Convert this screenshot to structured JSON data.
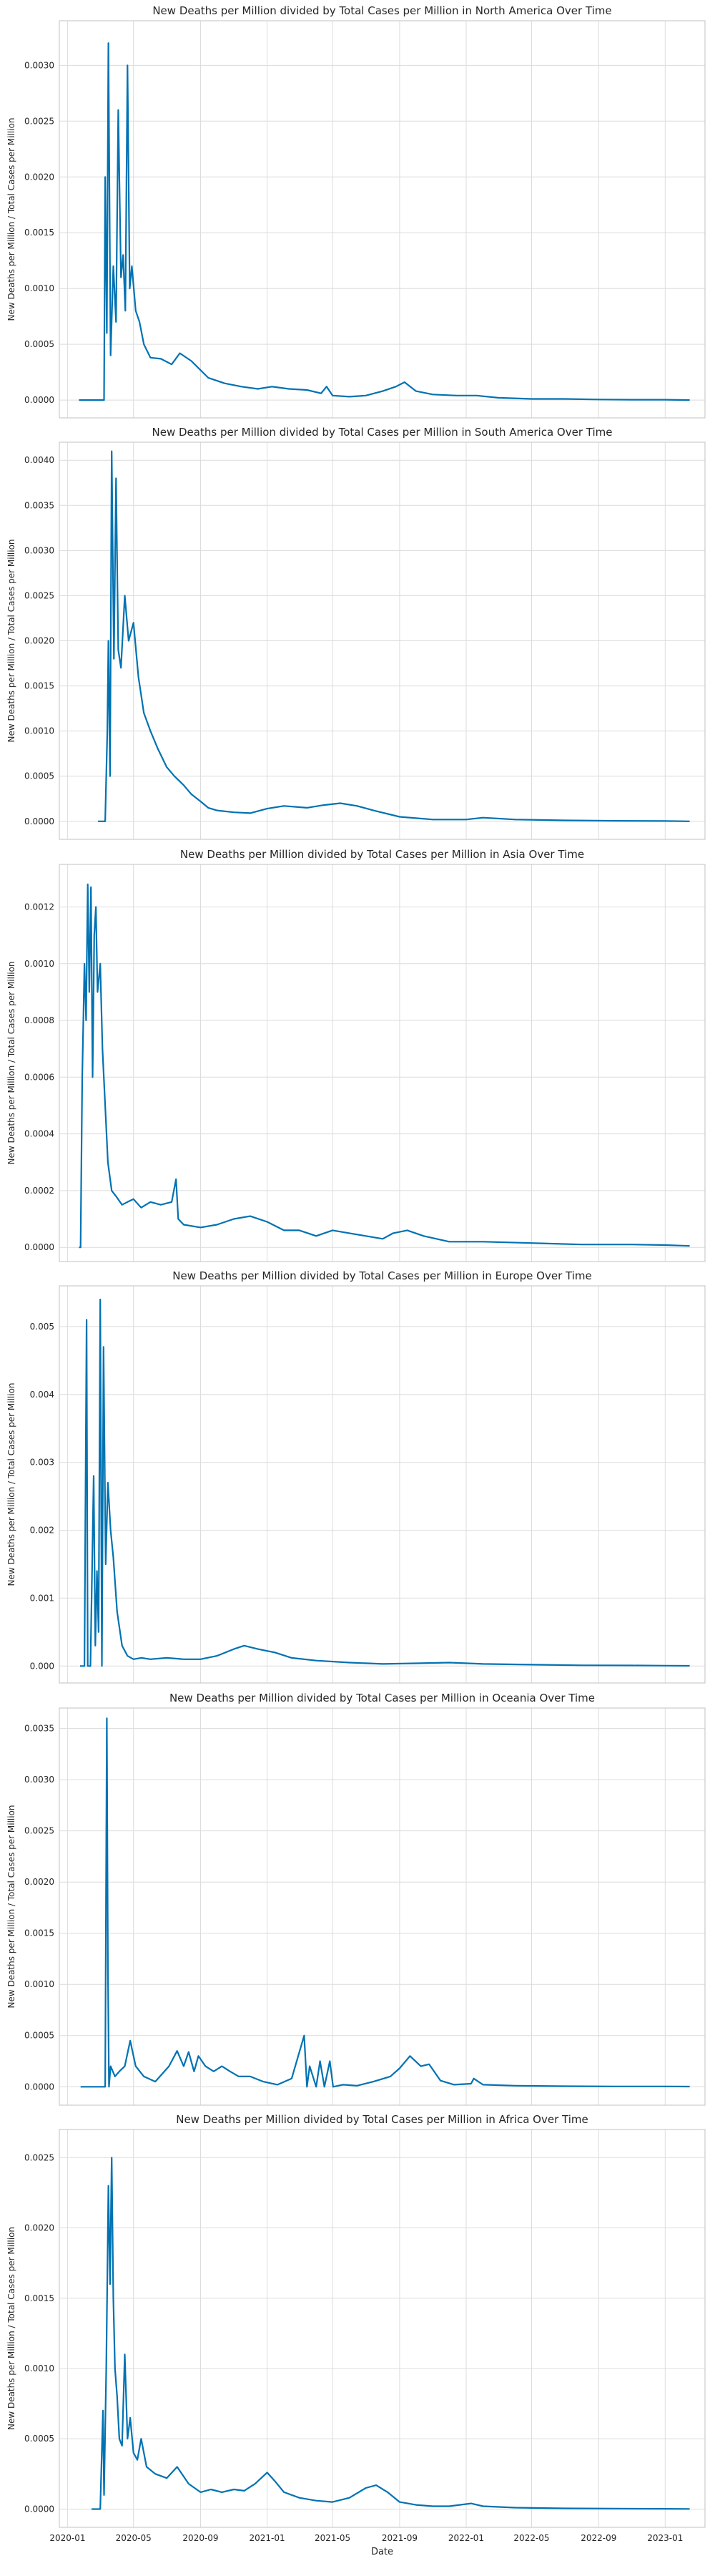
{
  "figure": {
    "shared_xlabel": "Date"
  },
  "chart_data": [
    {
      "type": "line",
      "title": "New Deaths per Million divided by Total Cases per Million in North America Over Time",
      "ylabel": "New Deaths per Million / Total Cases per Million",
      "xlabel": "",
      "ylim": [
        -0.00016,
        0.0034
      ],
      "yticks": [
        0,
        0.0005,
        0.001,
        0.0015,
        0.002,
        0.0025,
        0.003
      ],
      "ytick_labels": [
        "0.0000",
        "0.0005",
        "0.0010",
        "0.0015",
        "0.0020",
        "0.0025",
        "0.0030"
      ],
      "xlim": [
        "2019-12-17",
        "2023-03-15"
      ],
      "xticks": [
        "2020-01-01",
        "2020-05-01",
        "2020-09-01",
        "2021-01-01",
        "2021-05-01",
        "2021-09-01",
        "2022-01-01",
        "2022-05-01",
        "2022-09-01",
        "2023-01-01"
      ],
      "xtick_labels": [],
      "grid": true,
      "color": "#0072b2",
      "series": [
        {
          "x": [
            "2020-01-22",
            "2020-03-01",
            "2020-03-08",
            "2020-03-10",
            "2020-03-13",
            "2020-03-16",
            "2020-03-20",
            "2020-03-25",
            "2020-03-30",
            "2020-04-03",
            "2020-04-08",
            "2020-04-12",
            "2020-04-16",
            "2020-04-20",
            "2020-04-24",
            "2020-04-28",
            "2020-05-05",
            "2020-05-12",
            "2020-05-20",
            "2020-06-01",
            "2020-06-20",
            "2020-07-10",
            "2020-07-25",
            "2020-08-15",
            "2020-09-15",
            "2020-10-15",
            "2020-11-15",
            "2020-12-15",
            "2021-01-10",
            "2021-02-10",
            "2021-03-15",
            "2021-04-10",
            "2021-04-20",
            "2021-05-01",
            "2021-06-01",
            "2021-07-01",
            "2021-08-01",
            "2021-08-25",
            "2021-09-10",
            "2021-10-01",
            "2021-11-01",
            "2021-12-15",
            "2022-01-20",
            "2022-03-01",
            "2022-05-01",
            "2022-07-01",
            "2022-09-01",
            "2022-11-01",
            "2023-01-01",
            "2023-02-15"
          ],
          "y": [
            0.0,
            0.0,
            0.0,
            0.002,
            0.0006,
            0.0032,
            0.0004,
            0.0012,
            0.0007,
            0.0026,
            0.0011,
            0.0013,
            0.0008,
            0.003,
            0.001,
            0.0012,
            0.0008,
            0.0007,
            0.0005,
            0.00038,
            0.00037,
            0.00032,
            0.00042,
            0.00035,
            0.0002,
            0.00015,
            0.00012,
            0.0001,
            0.00012,
            0.0001,
            9e-05,
            6e-05,
            0.00012,
            4e-05,
            3e-05,
            4e-05,
            8e-05,
            0.00012,
            0.00016,
            8e-05,
            5e-05,
            4e-05,
            4e-05,
            2e-05,
            1e-05,
            1e-05,
            5e-06,
            3e-06,
            3e-06,
            0.0
          ]
        }
      ]
    },
    {
      "type": "line",
      "title": "New Deaths per Million divided by Total Cases per Million in South America Over Time",
      "ylabel": "New Deaths per Million / Total Cases per Million",
      "xlabel": "",
      "ylim": [
        -0.0002,
        0.0042
      ],
      "yticks": [
        0,
        0.0005,
        0.001,
        0.0015,
        0.002,
        0.0025,
        0.003,
        0.0035,
        0.004
      ],
      "ytick_labels": [
        "0.0000",
        "0.0005",
        "0.0010",
        "0.0015",
        "0.0020",
        "0.0025",
        "0.0030",
        "0.0035",
        "0.0040"
      ],
      "xlim": [
        "2019-12-17",
        "2023-03-15"
      ],
      "xticks": [
        "2020-01-01",
        "2020-05-01",
        "2020-09-01",
        "2021-01-01",
        "2021-05-01",
        "2021-09-01",
        "2022-01-01",
        "2022-05-01",
        "2022-09-01",
        "2023-01-01"
      ],
      "xtick_labels": [],
      "grid": true,
      "color": "#0072b2",
      "series": [
        {
          "x": [
            "2020-02-26",
            "2020-03-10",
            "2020-03-14",
            "2020-03-16",
            "2020-03-19",
            "2020-03-22",
            "2020-03-26",
            "2020-03-30",
            "2020-04-03",
            "2020-04-08",
            "2020-04-15",
            "2020-04-22",
            "2020-05-01",
            "2020-05-10",
            "2020-05-20",
            "2020-06-01",
            "2020-06-15",
            "2020-07-01",
            "2020-07-15",
            "2020-08-01",
            "2020-08-15",
            "2020-09-01",
            "2020-09-15",
            "2020-10-01",
            "2020-11-01",
            "2020-12-01",
            "2021-01-01",
            "2021-02-01",
            "2021-03-15",
            "2021-04-15",
            "2021-05-15",
            "2021-06-15",
            "2021-07-15",
            "2021-09-01",
            "2021-11-01",
            "2022-01-01",
            "2022-02-01",
            "2022-04-01",
            "2022-07-01",
            "2022-10-01",
            "2023-01-01",
            "2023-02-15"
          ],
          "y": [
            0.0,
            0.0,
            0.001,
            0.002,
            0.0005,
            0.0041,
            0.0018,
            0.0038,
            0.0019,
            0.0017,
            0.0025,
            0.002,
            0.0022,
            0.0016,
            0.0012,
            0.001,
            0.0008,
            0.0006,
            0.0005,
            0.0004,
            0.0003,
            0.00022,
            0.00015,
            0.00012,
            0.0001,
            9e-05,
            0.00014,
            0.00017,
            0.00015,
            0.00018,
            0.0002,
            0.00017,
            0.00012,
            5e-05,
            2e-05,
            2e-05,
            4e-05,
            2e-05,
            1e-05,
            5e-06,
            3e-06,
            0.0
          ]
        }
      ]
    },
    {
      "type": "line",
      "title": "New Deaths per Million divided by Total Cases per Million in Asia Over Time",
      "ylabel": "New Deaths per Million / Total Cases per Million",
      "xlabel": "",
      "ylim": [
        -5e-05,
        0.00135
      ],
      "yticks": [
        0,
        0.0002,
        0.0004,
        0.0006,
        0.0008,
        0.001,
        0.0012
      ],
      "ytick_labels": [
        "0.0000",
        "0.0002",
        "0.0004",
        "0.0006",
        "0.0008",
        "0.0010",
        "0.0012"
      ],
      "xlim": [
        "2019-12-17",
        "2023-03-15"
      ],
      "xticks": [
        "2020-01-01",
        "2020-05-01",
        "2020-09-01",
        "2021-01-01",
        "2021-05-01",
        "2021-09-01",
        "2022-01-01",
        "2022-05-01",
        "2022-09-01",
        "2023-01-01"
      ],
      "xtick_labels": [],
      "grid": true,
      "color": "#0072b2",
      "series": [
        {
          "x": [
            "2020-01-22",
            "2020-01-25",
            "2020-01-28",
            "2020-02-01",
            "2020-02-04",
            "2020-02-07",
            "2020-02-10",
            "2020-02-13",
            "2020-02-16",
            "2020-02-19",
            "2020-02-22",
            "2020-02-25",
            "2020-03-01",
            "2020-03-05",
            "2020-03-10",
            "2020-03-15",
            "2020-03-22",
            "2020-03-30",
            "2020-04-10",
            "2020-04-20",
            "2020-05-01",
            "2020-05-15",
            "2020-06-01",
            "2020-06-20",
            "2020-07-10",
            "2020-07-18",
            "2020-07-22",
            "2020-08-01",
            "2020-09-01",
            "2020-10-01",
            "2020-11-01",
            "2020-12-01",
            "2021-01-01",
            "2021-02-01",
            "2021-03-01",
            "2021-04-01",
            "2021-05-01",
            "2021-06-01",
            "2021-07-01",
            "2021-08-01",
            "2021-08-20",
            "2021-09-15",
            "2021-10-15",
            "2021-12-01",
            "2022-02-01",
            "2022-05-01",
            "2022-08-01",
            "2022-11-01",
            "2023-01-01",
            "2023-02-15"
          ],
          "y": [
            0.0,
            0.0,
            0.0006,
            0.001,
            0.0008,
            0.00128,
            0.0009,
            0.00127,
            0.0006,
            0.0011,
            0.0012,
            0.0009,
            0.001,
            0.0007,
            0.0005,
            0.0003,
            0.0002,
            0.00018,
            0.00015,
            0.00016,
            0.00017,
            0.00014,
            0.00016,
            0.00015,
            0.00016,
            0.00024,
            0.0001,
            8e-05,
            7e-05,
            8e-05,
            0.0001,
            0.00011,
            9e-05,
            6e-05,
            6e-05,
            4e-05,
            6e-05,
            5e-05,
            4e-05,
            3e-05,
            5e-05,
            6e-05,
            4e-05,
            2e-05,
            2e-05,
            1.5e-05,
            1e-05,
            1e-05,
            8e-06,
            5e-06
          ]
        }
      ]
    },
    {
      "type": "line",
      "title": "New Deaths per Million divided by Total Cases per Million in Europe Over Time",
      "ylabel": "New Deaths per Million / Total Cases per Million",
      "xlabel": "",
      "ylim": [
        -0.00025,
        0.0056
      ],
      "yticks": [
        0,
        0.001,
        0.002,
        0.003,
        0.004,
        0.005
      ],
      "ytick_labels": [
        "0.000",
        "0.001",
        "0.002",
        "0.003",
        "0.004",
        "0.005"
      ],
      "xlim": [
        "2019-12-17",
        "2023-03-15"
      ],
      "xticks": [
        "2020-01-01",
        "2020-05-01",
        "2020-09-01",
        "2021-01-01",
        "2021-05-01",
        "2021-09-01",
        "2022-01-01",
        "2022-05-01",
        "2022-09-01",
        "2023-01-01"
      ],
      "xtick_labels": [],
      "grid": true,
      "color": "#0072b2",
      "series": [
        {
          "x": [
            "2020-01-24",
            "2020-02-01",
            "2020-02-05",
            "2020-02-07",
            "2020-02-12",
            "2020-02-18",
            "2020-02-21",
            "2020-02-24",
            "2020-02-27",
            "2020-03-01",
            "2020-03-04",
            "2020-03-07",
            "2020-03-11",
            "2020-03-15",
            "2020-03-20",
            "2020-03-25",
            "2020-04-01",
            "2020-04-10",
            "2020-04-20",
            "2020-05-01",
            "2020-05-15",
            "2020-06-01",
            "2020-07-01",
            "2020-08-01",
            "2020-09-01",
            "2020-10-01",
            "2020-11-01",
            "2020-11-20",
            "2020-12-15",
            "2021-01-15",
            "2021-02-15",
            "2021-04-01",
            "2021-06-01",
            "2021-08-01",
            "2021-10-01",
            "2021-12-01",
            "2022-02-01",
            "2022-05-01",
            "2022-08-01",
            "2022-11-01",
            "2023-01-01",
            "2023-02-15"
          ],
          "y": [
            0.0,
            0.0,
            0.0051,
            0.0,
            0.0,
            0.0028,
            0.0003,
            0.0014,
            0.0005,
            0.0054,
            0.0,
            0.0047,
            0.0015,
            0.0027,
            0.002,
            0.0016,
            0.0008,
            0.0003,
            0.00015,
            0.0001,
            0.00012,
            0.0001,
            0.00012,
            0.0001,
            0.0001,
            0.00015,
            0.00025,
            0.0003,
            0.00025,
            0.0002,
            0.00012,
            8e-05,
            5e-05,
            3e-05,
            4e-05,
            5e-05,
            3e-05,
            2e-05,
            1e-05,
            8e-06,
            5e-06,
            3e-06
          ]
        }
      ]
    },
    {
      "type": "line",
      "title": "New Deaths per Million divided by Total Cases per Million in Oceania Over Time",
      "ylabel": "New Deaths per Million / Total Cases per Million",
      "xlabel": "",
      "ylim": [
        -0.00018,
        0.0037
      ],
      "yticks": [
        0,
        0.0005,
        0.001,
        0.0015,
        0.002,
        0.0025,
        0.003,
        0.0035
      ],
      "ytick_labels": [
        "0.0000",
        "0.0005",
        "0.0010",
        "0.0015",
        "0.0020",
        "0.0025",
        "0.0030",
        "0.0035"
      ],
      "xlim": [
        "2019-12-17",
        "2023-03-15"
      ],
      "xticks": [
        "2020-01-01",
        "2020-05-01",
        "2020-09-01",
        "2021-01-01",
        "2021-05-01",
        "2021-09-01",
        "2022-01-01",
        "2022-05-01",
        "2022-09-01",
        "2023-01-01"
      ],
      "xtick_labels": [],
      "grid": true,
      "color": "#0072b2",
      "series": [
        {
          "x": [
            "2020-01-25",
            "2020-03-10",
            "2020-03-13",
            "2020-03-15",
            "2020-03-17",
            "2020-03-20",
            "2020-03-28",
            "2020-04-05",
            "2020-04-15",
            "2020-04-25",
            "2020-05-05",
            "2020-05-20",
            "2020-06-10",
            "2020-07-05",
            "2020-07-20",
            "2020-08-01",
            "2020-08-10",
            "2020-08-20",
            "2020-08-28",
            "2020-09-10",
            "2020-09-25",
            "2020-10-10",
            "2020-10-25",
            "2020-11-10",
            "2020-12-01",
            "2020-12-25",
            "2021-01-20",
            "2021-02-15",
            "2021-03-10",
            "2021-03-15",
            "2021-03-20",
            "2021-04-01",
            "2021-04-08",
            "2021-04-16",
            "2021-04-26",
            "2021-05-02",
            "2021-05-20",
            "2021-06-15",
            "2021-07-15",
            "2021-08-15",
            "2021-09-01",
            "2021-09-20",
            "2021-10-10",
            "2021-10-25",
            "2021-11-15",
            "2021-12-10",
            "2022-01-10",
            "2022-01-15",
            "2022-02-01",
            "2022-04-01",
            "2022-07-01",
            "2022-10-01",
            "2023-01-01",
            "2023-02-15"
          ],
          "y": [
            0.0,
            0.0,
            0.0036,
            0.0012,
            0.0,
            0.0002,
            0.0001,
            0.00015,
            0.0002,
            0.00045,
            0.0002,
            0.0001,
            5e-05,
            0.0002,
            0.00035,
            0.0002,
            0.00034,
            0.00015,
            0.0003,
            0.0002,
            0.00015,
            0.0002,
            0.00015,
            0.0001,
            0.0001,
            5e-05,
            2e-05,
            8e-05,
            0.0005,
            0.0,
            0.0002,
            0.0,
            0.00025,
            0.0,
            0.00025,
            0.0,
            2e-05,
            1e-05,
            5e-05,
            0.0001,
            0.00018,
            0.0003,
            0.0002,
            0.00022,
            6e-05,
            2e-05,
            3e-05,
            8e-05,
            2e-05,
            1e-05,
            5e-06,
            3e-06,
            3e-06,
            2e-06
          ]
        }
      ]
    },
    {
      "type": "line",
      "title": "New Deaths per Million divided by Total Cases per Million in Africa Over Time",
      "ylabel": "New Deaths per Million / Total Cases per Million",
      "xlabel": "Date",
      "ylim": [
        -0.00013,
        0.0027
      ],
      "yticks": [
        0,
        0.0005,
        0.001,
        0.0015,
        0.002,
        0.0025
      ],
      "ytick_labels": [
        "0.0000",
        "0.0005",
        "0.0010",
        "0.0015",
        "0.0020",
        "0.0025"
      ],
      "xlim": [
        "2019-12-17",
        "2023-03-15"
      ],
      "xticks": [
        "2020-01-01",
        "2020-05-01",
        "2020-09-01",
        "2021-01-01",
        "2021-05-01",
        "2021-09-01",
        "2022-01-01",
        "2022-05-01",
        "2022-09-01",
        "2023-01-01"
      ],
      "xtick_labels": [
        "2020-01",
        "2020-05",
        "2020-09",
        "2021-01",
        "2021-05",
        "2021-09",
        "2022-01",
        "2022-05",
        "2022-09",
        "2023-01"
      ],
      "grid": true,
      "color": "#0072b2",
      "series": [
        {
          "x": [
            "2020-02-14",
            "2020-03-01",
            "2020-03-06",
            "2020-03-08",
            "2020-03-12",
            "2020-03-16",
            "2020-03-19",
            "2020-03-22",
            "2020-03-25",
            "2020-03-28",
            "2020-04-01",
            "2020-04-05",
            "2020-04-10",
            "2020-04-15",
            "2020-04-20",
            "2020-04-25",
            "2020-05-01",
            "2020-05-08",
            "2020-05-15",
            "2020-05-25",
            "2020-06-10",
            "2020-07-01",
            "2020-07-20",
            "2020-08-10",
            "2020-09-01",
            "2020-09-20",
            "2020-10-10",
            "2020-11-01",
            "2020-11-20",
            "2020-12-10",
            "2021-01-01",
            "2021-01-15",
            "2021-02-01",
            "2021-03-01",
            "2021-04-01",
            "2021-05-01",
            "2021-06-01",
            "2021-07-01",
            "2021-07-20",
            "2021-08-10",
            "2021-09-01",
            "2021-10-01",
            "2021-11-01",
            "2021-12-01",
            "2022-01-10",
            "2022-02-01",
            "2022-04-01",
            "2022-07-01",
            "2022-10-01",
            "2023-01-01",
            "2023-02-15"
          ],
          "y": [
            0.0,
            0.0,
            0.0007,
            0.0001,
            0.001,
            0.0023,
            0.0016,
            0.0025,
            0.0015,
            0.001,
            0.0008,
            0.0005,
            0.00045,
            0.0011,
            0.0005,
            0.00065,
            0.0004,
            0.00035,
            0.0005,
            0.0003,
            0.00025,
            0.00022,
            0.0003,
            0.00018,
            0.00012,
            0.00014,
            0.00012,
            0.00014,
            0.00013,
            0.00018,
            0.00026,
            0.0002,
            0.00012,
            8e-05,
            6e-05,
            5e-05,
            8e-05,
            0.00015,
            0.00017,
            0.00012,
            5e-05,
            3e-05,
            2e-05,
            2e-05,
            4e-05,
            2e-05,
            1e-05,
            5e-06,
            3e-06,
            2e-06,
            1e-06
          ]
        }
      ]
    }
  ]
}
